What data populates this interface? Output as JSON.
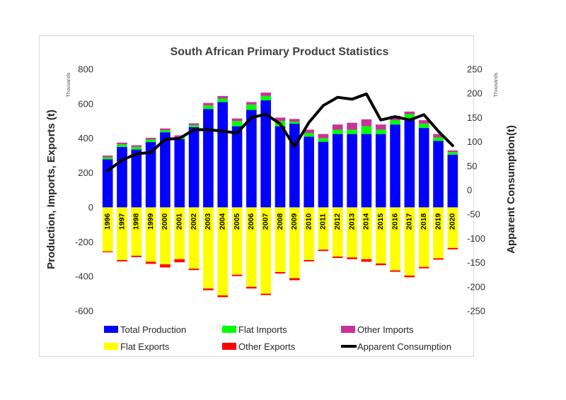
{
  "chart_data": {
    "type": "bar",
    "title": "South African Primary Product Statistics",
    "ylabel": "Production, Imports, Exports (t)",
    "y2label": "Apparent Consumption(t)",
    "yunit": "Thousands",
    "y2unit": "Thousands",
    "ylim": [
      -600,
      800
    ],
    "y2lim": [
      -250,
      250
    ],
    "yticks": [
      "800",
      "600",
      "400",
      "200",
      "0",
      "-200",
      "-400",
      "-600"
    ],
    "y2ticks": [
      "250",
      "200",
      "150",
      "100",
      "50",
      "0",
      "-50",
      "-100",
      "-150",
      "-200",
      "-250"
    ],
    "categories": [
      "1996",
      "1997",
      "1998",
      "1999",
      "2000",
      "2001",
      "2002",
      "2003",
      "2004",
      "2005",
      "2006",
      "2007",
      "2008",
      "2009",
      "2010",
      "2011",
      "2012",
      "2013",
      "2014",
      "2015",
      "2016",
      "2017",
      "2018",
      "2019",
      "2020"
    ],
    "legend_position": "bottom",
    "series": [
      {
        "name": "Total Production",
        "kind": "bar",
        "color": "#0000ff",
        "values": [
          278,
          350,
          335,
          378,
          435,
          395,
          465,
          570,
          610,
          470,
          565,
          620,
          470,
          485,
          410,
          380,
          425,
          425,
          425,
          425,
          480,
          515,
          460,
          385,
          305
        ]
      },
      {
        "name": "Flat Imports",
        "kind": "bar",
        "color": "#00ff00",
        "values": [
          12,
          15,
          15,
          15,
          12,
          10,
          12,
          20,
          20,
          30,
          30,
          25,
          30,
          12,
          20,
          20,
          25,
          25,
          45,
          25,
          25,
          25,
          25,
          20,
          15
        ]
      },
      {
        "name": "Other Imports",
        "kind": "bar",
        "color": "#cc3399",
        "values": [
          10,
          10,
          10,
          10,
          10,
          12,
          10,
          15,
          15,
          15,
          15,
          20,
          20,
          15,
          20,
          25,
          30,
          40,
          40,
          30,
          25,
          15,
          20,
          20,
          10
        ]
      },
      {
        "name": "Flat Exports",
        "kind": "bar",
        "color": "#ffff00",
        "values": [
          -255,
          -305,
          -280,
          -315,
          -330,
          -300,
          -355,
          -470,
          -510,
          -390,
          -460,
          -500,
          -375,
          -410,
          -305,
          -245,
          -285,
          -290,
          -300,
          -325,
          -365,
          -395,
          -345,
          -295,
          -235
        ]
      },
      {
        "name": "Other Exports",
        "kind": "bar",
        "color": "#ff0000",
        "values": [
          -5,
          -8,
          -8,
          -12,
          -18,
          -18,
          -8,
          -10,
          -10,
          -8,
          -10,
          -8,
          -8,
          -12,
          -8,
          -8,
          -8,
          -10,
          -15,
          -10,
          -8,
          -10,
          -8,
          -8,
          -8
        ]
      },
      {
        "name": "Apparent Consumption",
        "kind": "line",
        "axis": "right",
        "color": "#000000",
        "values": [
          40,
          62,
          75,
          78,
          105,
          107,
          125,
          125,
          122,
          118,
          150,
          157,
          137,
          90,
          140,
          175,
          192,
          188,
          199,
          145,
          152,
          145,
          156,
          122,
          92
        ]
      }
    ]
  }
}
